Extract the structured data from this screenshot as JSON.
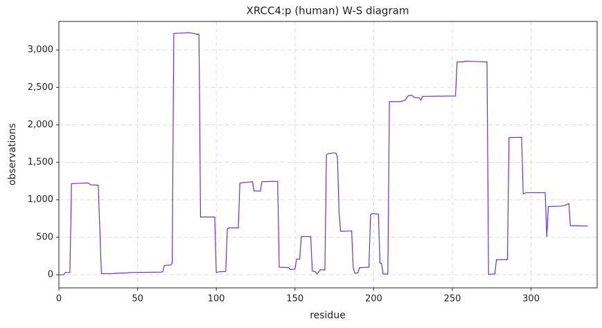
{
  "chart_data": {
    "type": "line",
    "title": "XRCC4:p (human) W-S diagram",
    "x_label": "residue",
    "y_label": "observations",
    "x": [
      0,
      3,
      4,
      7,
      8,
      12,
      18,
      19,
      20,
      25,
      27,
      35,
      36,
      44,
      45,
      65,
      66,
      67,
      71,
      72,
      73,
      79,
      82,
      86,
      87,
      89,
      90,
      99,
      100,
      102,
      106,
      107,
      108,
      114,
      115,
      120,
      123,
      124,
      128,
      129,
      134,
      139,
      140,
      146,
      147,
      150,
      151,
      153,
      154,
      160,
      161,
      163,
      164,
      166,
      169,
      170,
      171,
      174,
      176,
      177,
      178,
      179,
      186,
      187,
      188,
      190,
      191,
      197,
      198,
      199,
      203,
      204,
      205,
      206,
      209,
      210,
      217,
      220,
      222,
      224,
      226,
      229,
      230,
      231,
      252,
      253,
      257,
      258,
      266,
      272,
      273,
      277,
      278,
      285,
      286,
      294,
      295,
      297,
      309,
      310,
      311,
      319,
      322,
      324,
      325,
      336
    ],
    "series": [
      {
        "name": "observations",
        "color": "#6633cc",
        "values": [
          0,
          0,
          30,
          30,
          1215,
          1220,
          1225,
          1220,
          1200,
          1195,
          15,
          15,
          20,
          25,
          30,
          35,
          40,
          125,
          130,
          150,
          3220,
          3225,
          3230,
          3220,
          3210,
          3210,
          770,
          770,
          30,
          40,
          45,
          610,
          625,
          625,
          1225,
          1235,
          1240,
          1120,
          1115,
          1240,
          1245,
          1245,
          100,
          95,
          70,
          75,
          210,
          210,
          510,
          510,
          50,
          40,
          10,
          65,
          65,
          1600,
          1615,
          1625,
          1625,
          1570,
          820,
          580,
          585,
          100,
          20,
          25,
          95,
          100,
          800,
          815,
          810,
          155,
          150,
          10,
          10,
          2310,
          2310,
          2330,
          2390,
          2395,
          2365,
          2360,
          2330,
          2380,
          2385,
          2840,
          2840,
          2850,
          2845,
          2840,
          5,
          10,
          200,
          200,
          1830,
          1835,
          1080,
          1095,
          1095,
          505,
          910,
          915,
          930,
          950,
          655,
          650
        ]
      }
    ],
    "xlim": [
      0,
      342
    ],
    "ylim": [
      -175,
      3380
    ],
    "xticks": [
      0,
      50,
      100,
      150,
      200,
      250,
      300
    ],
    "yticks": [
      0,
      500,
      {
        "value": 1000,
        "label": "1,000"
      },
      {
        "value": 1500,
        "label": "1,500"
      },
      {
        "value": 2000,
        "label": "2,000"
      },
      {
        "value": 2500,
        "label": "2,500"
      },
      {
        "value": 3000,
        "label": "3,000"
      }
    ],
    "grid": true
  }
}
